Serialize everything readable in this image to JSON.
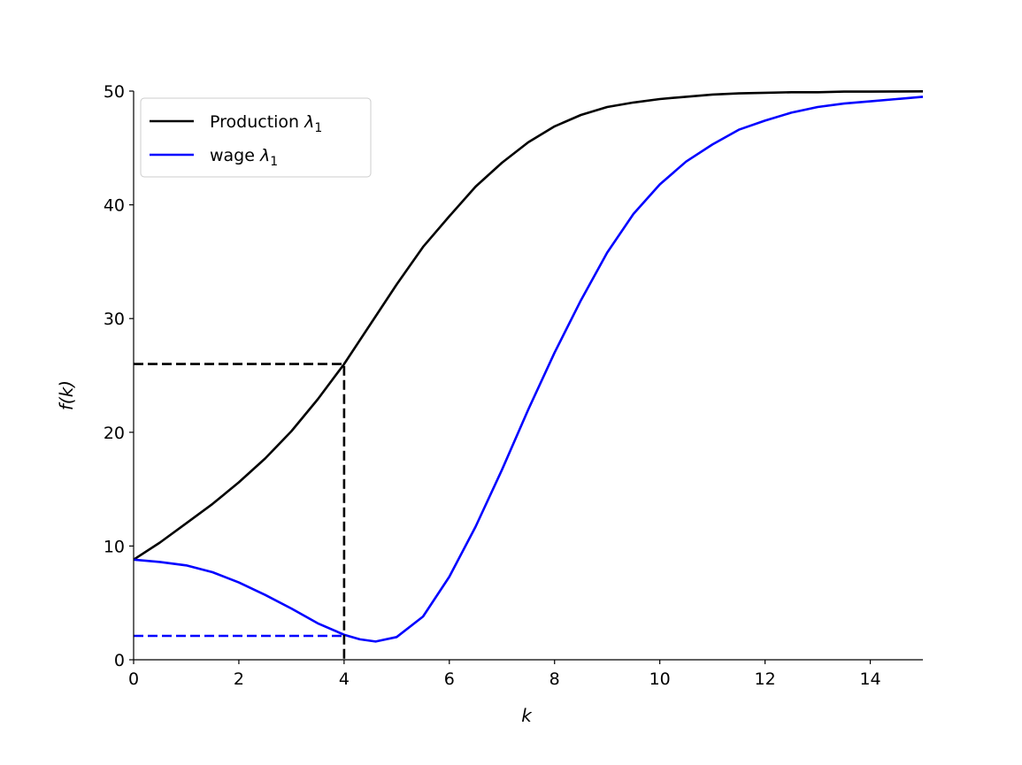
{
  "chart_data": {
    "type": "line",
    "xlabel": "k",
    "ylabel": "f(k)",
    "xlim": [
      0,
      15
    ],
    "ylim": [
      0,
      50
    ],
    "xticks": [
      "0",
      "2",
      "4",
      "6",
      "8",
      "10",
      "12",
      "14"
    ],
    "yticks": [
      "0",
      "10",
      "20",
      "30",
      "40",
      "50"
    ],
    "grid": false,
    "legend": {
      "position": "top-left",
      "entries": [
        {
          "label": "Production",
          "subscript": "λ",
          "index": "1",
          "color": "#000000"
        },
        {
          "label": "wage",
          "subscript": "λ",
          "index": "1",
          "color": "#0000ff"
        }
      ]
    },
    "series": [
      {
        "name": "Production λ1",
        "color": "#000000",
        "style": "solid",
        "x": [
          0,
          0.5,
          1,
          1.5,
          2,
          2.5,
          3,
          3.5,
          4,
          4.5,
          5,
          5.5,
          6,
          6.5,
          7,
          7.5,
          8,
          8.5,
          9,
          9.5,
          10,
          10.5,
          11,
          11.5,
          12,
          12.5,
          13,
          13.5,
          14,
          14.5,
          15
        ],
        "y": [
          8.8,
          10.3,
          12.0,
          13.7,
          15.6,
          17.7,
          20.1,
          22.9,
          26.0,
          29.5,
          33.0,
          36.3,
          39.0,
          41.6,
          43.7,
          45.5,
          46.9,
          47.9,
          48.6,
          49.0,
          49.3,
          49.5,
          49.7,
          49.8,
          49.85,
          49.9,
          49.9,
          49.95,
          49.95,
          49.97,
          49.98
        ]
      },
      {
        "name": "wage λ1",
        "color": "#0000ff",
        "style": "solid",
        "x": [
          0,
          0.5,
          1,
          1.5,
          2,
          2.5,
          3,
          3.5,
          4,
          4.3,
          4.6,
          5,
          5.5,
          6,
          6.5,
          7,
          7.5,
          8,
          8.5,
          9,
          9.5,
          10,
          10.5,
          11,
          11.5,
          12,
          12.5,
          13,
          13.5,
          14,
          14.5,
          15
        ],
        "y": [
          8.8,
          8.6,
          8.3,
          7.7,
          6.8,
          5.7,
          4.5,
          3.2,
          2.2,
          1.8,
          1.6,
          2.0,
          3.8,
          7.3,
          11.7,
          16.7,
          22.0,
          27.0,
          31.6,
          35.8,
          39.2,
          41.8,
          43.8,
          45.3,
          46.6,
          47.4,
          48.1,
          48.6,
          48.9,
          49.1,
          49.3,
          49.5
        ]
      },
      {
        "name": "",
        "color": "#000000",
        "style": "dashed",
        "x": [
          0,
          4,
          4
        ],
        "y": [
          26.0,
          26.0,
          0
        ]
      },
      {
        "name": "",
        "color": "#0000ff",
        "style": "dashed",
        "x": [
          0,
          4
        ],
        "y": [
          2.1,
          2.1
        ]
      }
    ]
  }
}
